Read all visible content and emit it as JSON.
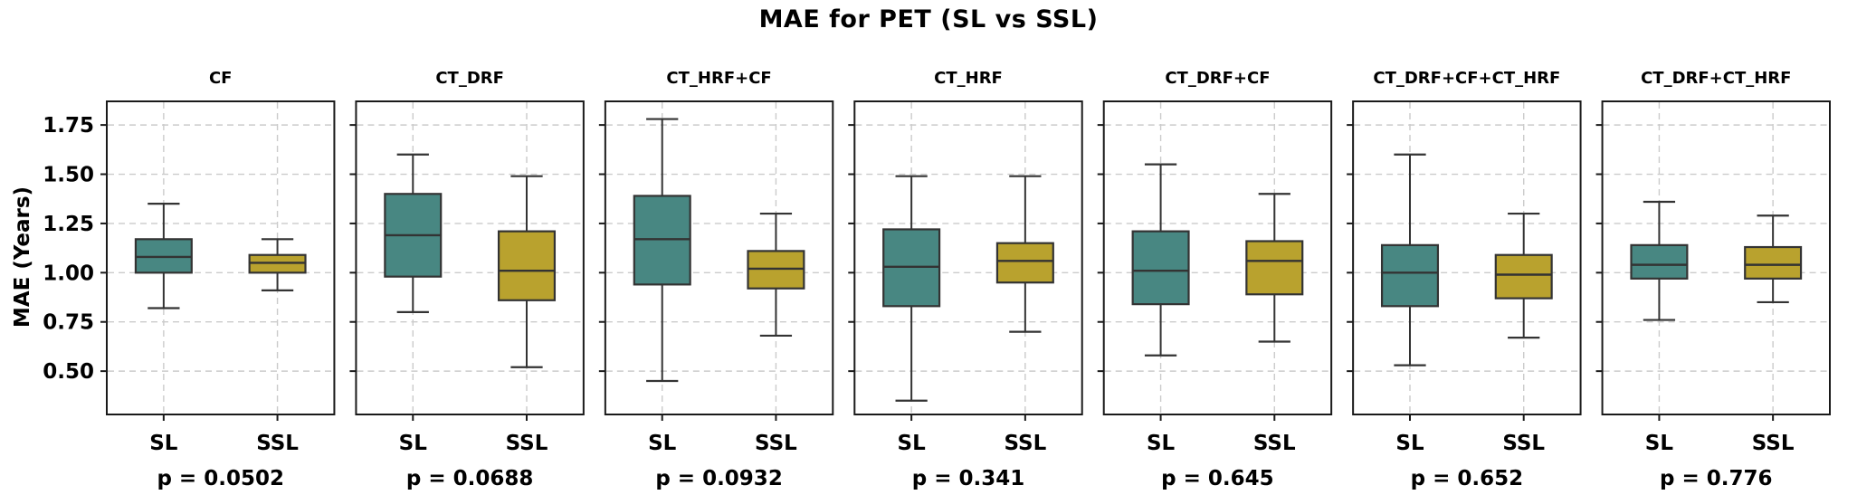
{
  "figure": {
    "title": "MAE for PET (SL vs SSL)"
  },
  "chart_data": {
    "type": "box",
    "title": "MAE for PET (SL vs SSL)",
    "xlabel": "",
    "ylabel": "MAE (Years)",
    "grid": true,
    "legend": "none",
    "ylim": [
      0.28,
      1.87
    ],
    "yticks": [
      0.5,
      0.75,
      1.0,
      1.25,
      1.5,
      1.75
    ],
    "ytick_labels": [
      "0.50",
      "0.75",
      "1.00",
      "1.25",
      "1.50",
      "1.75"
    ],
    "groups": [
      {
        "label": "SL",
        "color": "#488782"
      },
      {
        "label": "SSL",
        "color": "#b9a22e"
      }
    ],
    "colors": {
      "box_edge": "#333333",
      "frame": "#1a1a1a",
      "grid": "#cbcbcb",
      "background": "#ffffff"
    },
    "panels": [
      {
        "title": "CF",
        "p_label": "p = 0.0502",
        "boxes": [
          {
            "group": "SL",
            "whisker_low": 0.82,
            "q1": 1.0,
            "median": 1.08,
            "q3": 1.17,
            "whisker_high": 1.35
          },
          {
            "group": "SSL",
            "whisker_low": 0.91,
            "q1": 1.0,
            "median": 1.05,
            "q3": 1.09,
            "whisker_high": 1.17
          }
        ]
      },
      {
        "title": "CT_DRF",
        "p_label": "p = 0.0688",
        "boxes": [
          {
            "group": "SL",
            "whisker_low": 0.8,
            "q1": 0.98,
            "median": 1.19,
            "q3": 1.4,
            "whisker_high": 1.6
          },
          {
            "group": "SSL",
            "whisker_low": 0.52,
            "q1": 0.86,
            "median": 1.01,
            "q3": 1.21,
            "whisker_high": 1.49
          }
        ]
      },
      {
        "title": "CT_HRF+CF",
        "p_label": "p = 0.0932",
        "boxes": [
          {
            "group": "SL",
            "whisker_low": 0.45,
            "q1": 0.94,
            "median": 1.17,
            "q3": 1.39,
            "whisker_high": 1.78
          },
          {
            "group": "SSL",
            "whisker_low": 0.68,
            "q1": 0.92,
            "median": 1.02,
            "q3": 1.11,
            "whisker_high": 1.3
          }
        ]
      },
      {
        "title": "CT_HRF",
        "p_label": "p = 0.341",
        "boxes": [
          {
            "group": "SL",
            "whisker_low": 0.35,
            "q1": 0.83,
            "median": 1.03,
            "q3": 1.22,
            "whisker_high": 1.49
          },
          {
            "group": "SSL",
            "whisker_low": 0.7,
            "q1": 0.95,
            "median": 1.06,
            "q3": 1.15,
            "whisker_high": 1.49
          }
        ]
      },
      {
        "title": "CT_DRF+CF",
        "p_label": "p = 0.645",
        "boxes": [
          {
            "group": "SL",
            "whisker_low": 0.58,
            "q1": 0.84,
            "median": 1.01,
            "q3": 1.21,
            "whisker_high": 1.55
          },
          {
            "group": "SSL",
            "whisker_low": 0.65,
            "q1": 0.89,
            "median": 1.06,
            "q3": 1.16,
            "whisker_high": 1.4
          }
        ]
      },
      {
        "title": "CT_DRF+CF+CT_HRF",
        "p_label": "p = 0.652",
        "boxes": [
          {
            "group": "SL",
            "whisker_low": 0.53,
            "q1": 0.83,
            "median": 1.0,
            "q3": 1.14,
            "whisker_high": 1.6
          },
          {
            "group": "SSL",
            "whisker_low": 0.67,
            "q1": 0.87,
            "median": 0.99,
            "q3": 1.09,
            "whisker_high": 1.3
          }
        ]
      },
      {
        "title": "CT_DRF+CT_HRF",
        "p_label": "p = 0.776",
        "boxes": [
          {
            "group": "SL",
            "whisker_low": 0.76,
            "q1": 0.97,
            "median": 1.04,
            "q3": 1.14,
            "whisker_high": 1.36
          },
          {
            "group": "SSL",
            "whisker_low": 0.85,
            "q1": 0.97,
            "median": 1.04,
            "q3": 1.13,
            "whisker_high": 1.29
          }
        ]
      }
    ]
  }
}
